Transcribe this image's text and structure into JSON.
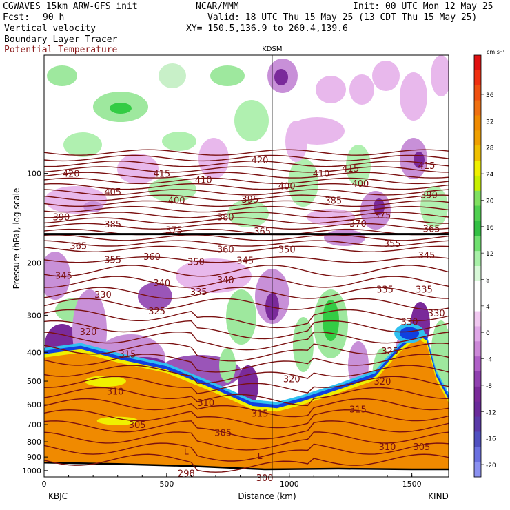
{
  "header": {
    "model": "CGWAVES 15km ARW-GFS init",
    "fcst_label": "Fcst:",
    "fcst_value": "90 h",
    "field1": "Vertical velocity",
    "field2": "Boundary Layer Tracer",
    "field3": "Potential Temperature",
    "org": "NCAR/MMM",
    "init": "Init: 00 UTC Mon 12 May 25",
    "valid": "Valid: 18 UTC Thu 15 May 25 (13 CDT Thu 15 May 25)",
    "xy": "XY= 150.5,136.9 to 260.4,139.6"
  },
  "colors": {
    "theta": "#7a1010",
    "green": "#33cc44",
    "light_green": "#aaf0aa",
    "purple": "#7a2a9a",
    "light_purple": "#e0a8e8",
    "orange": "#f08a00",
    "yellow": "#f0f000",
    "blue": "#1040e0",
    "cyan": "#30c0f0"
  },
  "chart_data": {
    "type": "heatmap",
    "title": "",
    "ylabel": "Pressure (hPa), log scale",
    "xlabel": "Distance (km)",
    "station_mid": "KDSM",
    "station_left": "KBJC",
    "station_right": "KIND",
    "x_ticks": [
      "0",
      "500",
      "1000",
      "1500"
    ],
    "x_tick_values": [
      0,
      500,
      1000,
      1500
    ],
    "xlim": [
      0,
      1650
    ],
    "y_ticks": [
      "100",
      "200",
      "300",
      "400",
      "500",
      "600",
      "700",
      "800",
      "900",
      "1000"
    ],
    "y_tick_values": [
      100,
      200,
      300,
      400,
      500,
      600,
      700,
      800,
      900,
      1000
    ],
    "ylim": [
      1050,
      40
    ],
    "y_scale": "log",
    "station_mid_x": 930,
    "colorbar": {
      "unit": "cm s⁻¹",
      "labels": [
        "36",
        "32",
        "28",
        "24",
        "20",
        "16",
        "12",
        "8",
        "4",
        "0",
        "-4",
        "-8",
        "-12",
        "-16",
        "-20"
      ],
      "colors": [
        "#e01010",
        "#f03010",
        "#f05010",
        "#f07010",
        "#f08a00",
        "#f0a000",
        "#f0c000",
        "#f0f000",
        "#c8f000",
        "#80e060",
        "#50d050",
        "#33c044",
        "#70e070",
        "#a8f0a8",
        "#d8f8d8",
        "#ffffff",
        "#ffffff",
        "#f0c8f0",
        "#e0a8e8",
        "#cc88d8",
        "#b060c8",
        "#9040b0",
        "#7a2a9a",
        "#6a2a9a",
        "#5a3aa8",
        "#5050c0",
        "#6a70e0",
        "#8a90f0"
      ]
    },
    "theta_labels": [
      "420",
      "415",
      "410",
      "405",
      "400",
      "395",
      "390",
      "385",
      "380",
      "375",
      "370",
      "365",
      "360",
      "355",
      "350",
      "345",
      "340",
      "335",
      "330",
      "325",
      "320",
      "315",
      "310",
      "305",
      "300",
      "298"
    ],
    "theta_label_spots": [
      {
        "t": "420",
        "x": 110,
        "p": 100
      },
      {
        "t": "415",
        "x": 480,
        "p": 100
      },
      {
        "t": "410",
        "x": 650,
        "p": 105
      },
      {
        "t": "420",
        "x": 880,
        "p": 90
      },
      {
        "t": "410",
        "x": 1130,
        "p": 100
      },
      {
        "t": "415",
        "x": 1250,
        "p": 96
      },
      {
        "t": "415",
        "x": 1560,
        "p": 94
      },
      {
        "t": "400",
        "x": 1290,
        "p": 108
      },
      {
        "t": "405",
        "x": 280,
        "p": 115
      },
      {
        "t": "400",
        "x": 540,
        "p": 123
      },
      {
        "t": "395",
        "x": 840,
        "p": 122
      },
      {
        "t": "400",
        "x": 990,
        "p": 110
      },
      {
        "t": "385",
        "x": 1180,
        "p": 123
      },
      {
        "t": "390",
        "x": 1570,
        "p": 118
      },
      {
        "t": "390",
        "x": 70,
        "p": 140
      },
      {
        "t": "385",
        "x": 280,
        "p": 148
      },
      {
        "t": "380",
        "x": 740,
        "p": 140
      },
      {
        "t": "375",
        "x": 1380,
        "p": 138
      },
      {
        "t": "370",
        "x": 1280,
        "p": 147
      },
      {
        "t": "375",
        "x": 530,
        "p": 155
      },
      {
        "t": "365",
        "x": 890,
        "p": 156
      },
      {
        "t": "365",
        "x": 1580,
        "p": 153
      },
      {
        "t": "365",
        "x": 140,
        "p": 175
      },
      {
        "t": "355",
        "x": 280,
        "p": 195
      },
      {
        "t": "360",
        "x": 440,
        "p": 190
      },
      {
        "t": "360",
        "x": 740,
        "p": 180
      },
      {
        "t": "350",
        "x": 990,
        "p": 180
      },
      {
        "t": "355",
        "x": 1420,
        "p": 172
      },
      {
        "t": "350",
        "x": 620,
        "p": 198
      },
      {
        "t": "345",
        "x": 820,
        "p": 196
      },
      {
        "t": "345",
        "x": 1560,
        "p": 188
      },
      {
        "t": "345",
        "x": 80,
        "p": 220
      },
      {
        "t": "340",
        "x": 480,
        "p": 233
      },
      {
        "t": "340",
        "x": 740,
        "p": 228
      },
      {
        "t": "335",
        "x": 630,
        "p": 250
      },
      {
        "t": "335",
        "x": 1390,
        "p": 245
      },
      {
        "t": "335",
        "x": 1550,
        "p": 245
      },
      {
        "t": "330",
        "x": 240,
        "p": 255
      },
      {
        "t": "325",
        "x": 460,
        "p": 290
      },
      {
        "t": "330",
        "x": 1490,
        "p": 315
      },
      {
        "t": "330",
        "x": 1600,
        "p": 295
      },
      {
        "t": "320",
        "x": 180,
        "p": 340
      },
      {
        "t": "315",
        "x": 340,
        "p": 405
      },
      {
        "t": "325",
        "x": 1410,
        "p": 395
      },
      {
        "t": "320",
        "x": 1010,
        "p": 490
      },
      {
        "t": "320",
        "x": 1380,
        "p": 500
      },
      {
        "t": "310",
        "x": 290,
        "p": 540
      },
      {
        "t": "310",
        "x": 660,
        "p": 590
      },
      {
        "t": "315",
        "x": 1280,
        "p": 620
      },
      {
        "t": "315",
        "x": 880,
        "p": 640
      },
      {
        "t": "305",
        "x": 380,
        "p": 700
      },
      {
        "t": "305",
        "x": 730,
        "p": 745
      },
      {
        "t": "310",
        "x": 1400,
        "p": 830
      },
      {
        "t": "305",
        "x": 1540,
        "p": 830
      },
      {
        "t": "298",
        "x": 580,
        "p": 1020
      },
      {
        "t": "300",
        "x": 900,
        "p": 1055
      }
    ],
    "surface_pressure_samples": [
      {
        "x": 0,
        "p": 940
      },
      {
        "x": 300,
        "p": 950
      },
      {
        "x": 600,
        "p": 965
      },
      {
        "x": 900,
        "p": 990
      },
      {
        "x": 1200,
        "p": 985
      },
      {
        "x": 1500,
        "p": 990
      },
      {
        "x": 1650,
        "p": 990
      }
    ],
    "pbl_top_samples": [
      {
        "x": 0,
        "p": 395
      },
      {
        "x": 150,
        "p": 380
      },
      {
        "x": 300,
        "p": 410
      },
      {
        "x": 500,
        "p": 445
      },
      {
        "x": 700,
        "p": 520
      },
      {
        "x": 850,
        "p": 590
      },
      {
        "x": 950,
        "p": 600
      },
      {
        "x": 1050,
        "p": 570
      },
      {
        "x": 1200,
        "p": 520
      },
      {
        "x": 1350,
        "p": 470
      },
      {
        "x": 1450,
        "p": 380
      },
      {
        "x": 1520,
        "p": 340
      },
      {
        "x": 1560,
        "p": 355
      },
      {
        "x": 1600,
        "p": 470
      },
      {
        "x": 1650,
        "p": 560
      }
    ],
    "tropopause_line_p": 160,
    "low_markers": [
      {
        "t": "L",
        "x": 580,
        "p": 860
      },
      {
        "t": "L",
        "x": 880,
        "p": 890
      }
    ]
  }
}
